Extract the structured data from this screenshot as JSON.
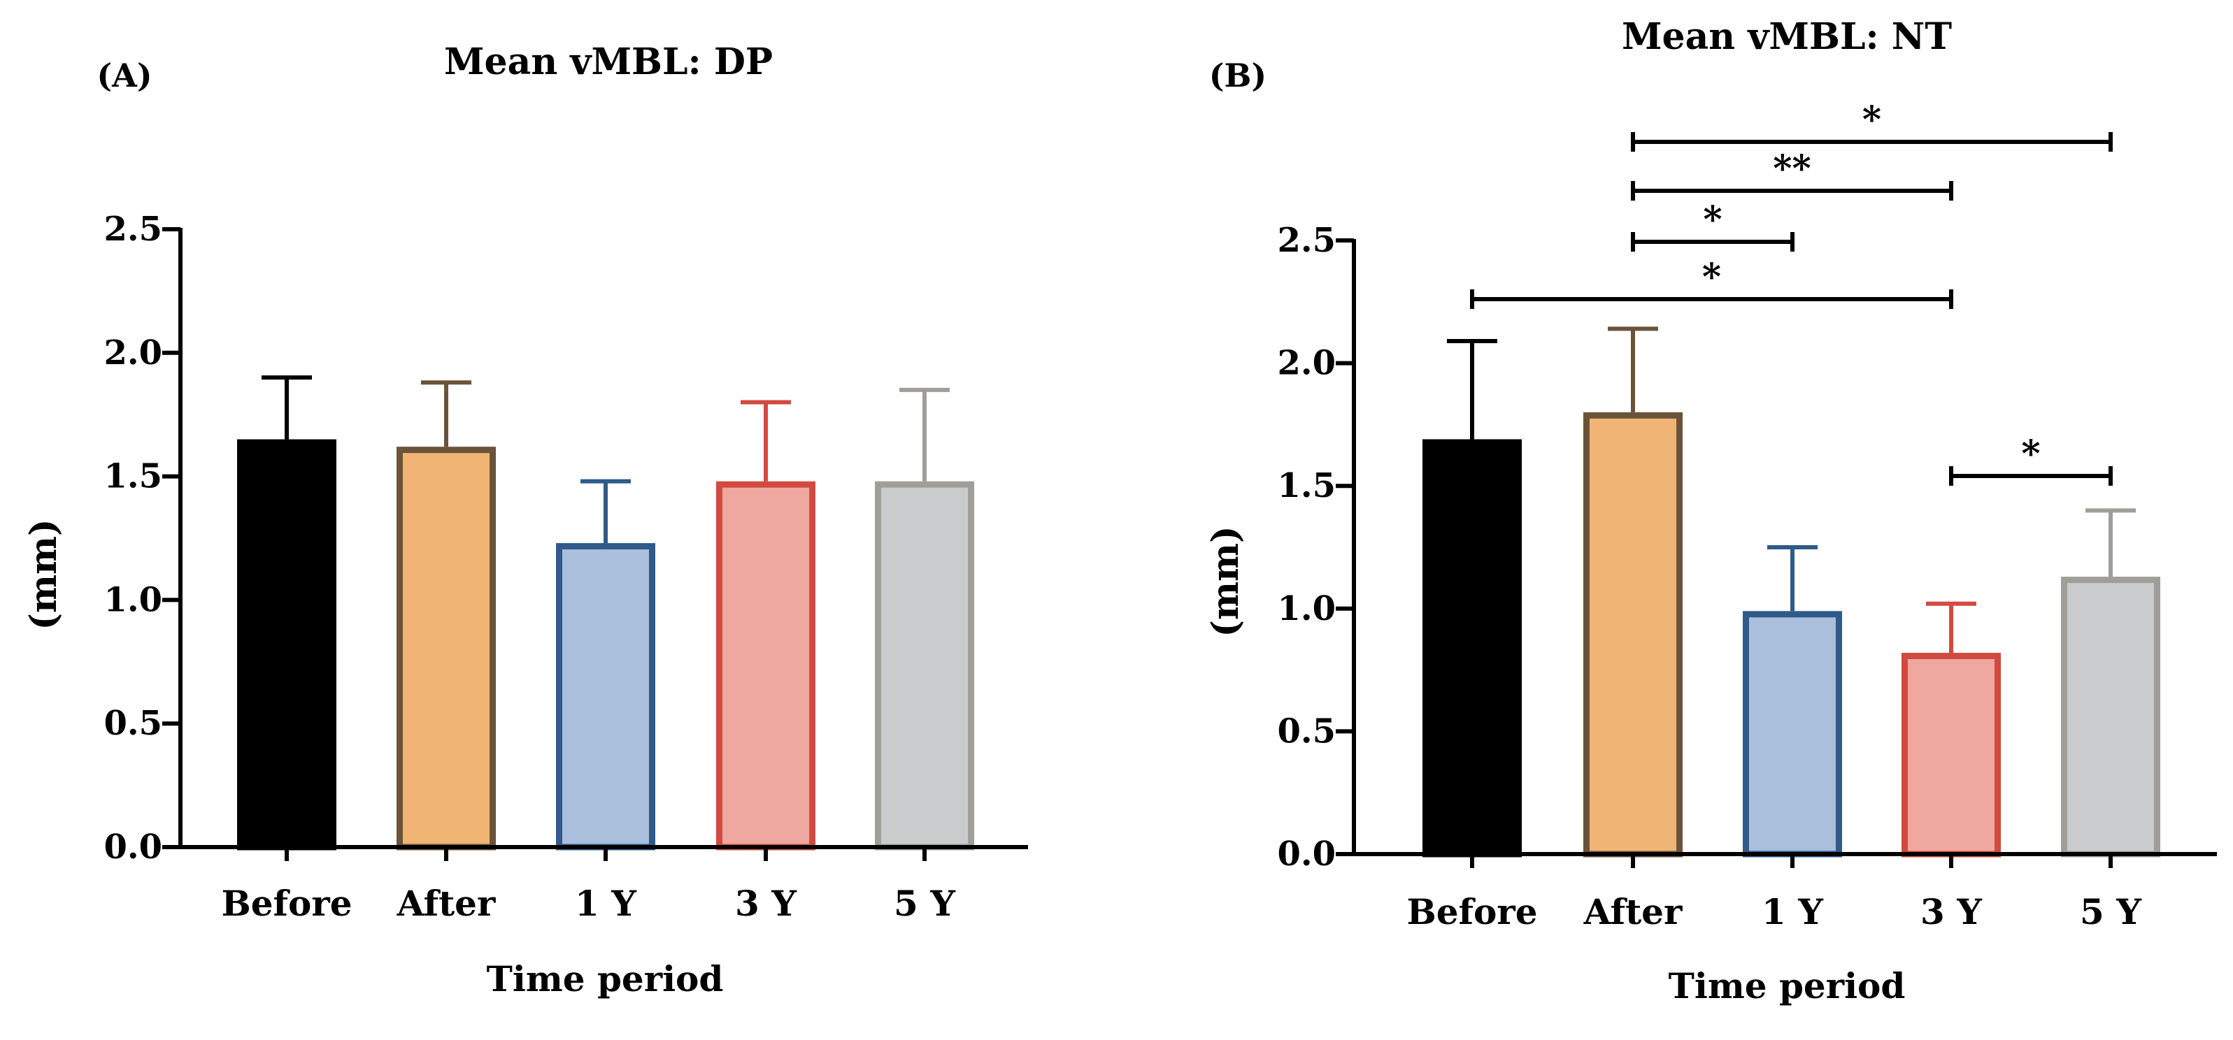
{
  "chart_data": [
    {
      "panel": "(A)",
      "type": "bar",
      "title": "Mean vMBL: DP",
      "xlabel": "Time period",
      "ylabel": "(mm)",
      "ylim": [
        0,
        2.5
      ],
      "yticks": [
        "0.0",
        "0.5",
        "1.0",
        "1.5",
        "2.0",
        "2.5"
      ],
      "categories": [
        "Before",
        "After",
        "1 Y",
        "3 Y",
        "5 Y"
      ],
      "values": [
        1.65,
        1.62,
        1.23,
        1.48,
        1.48
      ],
      "errors": [
        0.25,
        0.26,
        0.25,
        0.32,
        0.37
      ],
      "fill_colors": [
        "#000000",
        "#f0b574",
        "#a9bfdc",
        "#efa8a0",
        "#c9cbcd"
      ],
      "edge_colors": [
        "#000000",
        "#6b5339",
        "#2f5a8a",
        "#d24a3f",
        "#a09e99"
      ],
      "significance": []
    },
    {
      "panel": "(B)",
      "type": "bar",
      "title": "Mean vMBL: NT",
      "xlabel": "Time period",
      "ylabel": "(mm)",
      "ylim": [
        0,
        2.5
      ],
      "yticks": [
        "0.0",
        "0.5",
        "1.0",
        "1.5",
        "2.0",
        "2.5"
      ],
      "categories": [
        "Before",
        "After",
        "1 Y",
        "3 Y",
        "5 Y"
      ],
      "values": [
        1.69,
        1.8,
        0.99,
        0.82,
        1.13
      ],
      "errors": [
        0.4,
        0.34,
        0.26,
        0.2,
        0.27
      ],
      "fill_colors": [
        "#000000",
        "#f0b574",
        "#a9bfdc",
        "#efa8a0",
        "#c9cbcd"
      ],
      "edge_colors": [
        "#000000",
        "#6b5339",
        "#2f5a8a",
        "#d24a3f",
        "#a09e99"
      ],
      "significance": [
        {
          "from": 1,
          "to": 4,
          "label": "*"
        },
        {
          "from": 1,
          "to": 3,
          "label": "**"
        },
        {
          "from": 1,
          "to": 2,
          "label": "*"
        },
        {
          "from": 0,
          "to": 3,
          "label": "*"
        },
        {
          "from": 3,
          "to": 4,
          "label": "*"
        }
      ]
    }
  ]
}
